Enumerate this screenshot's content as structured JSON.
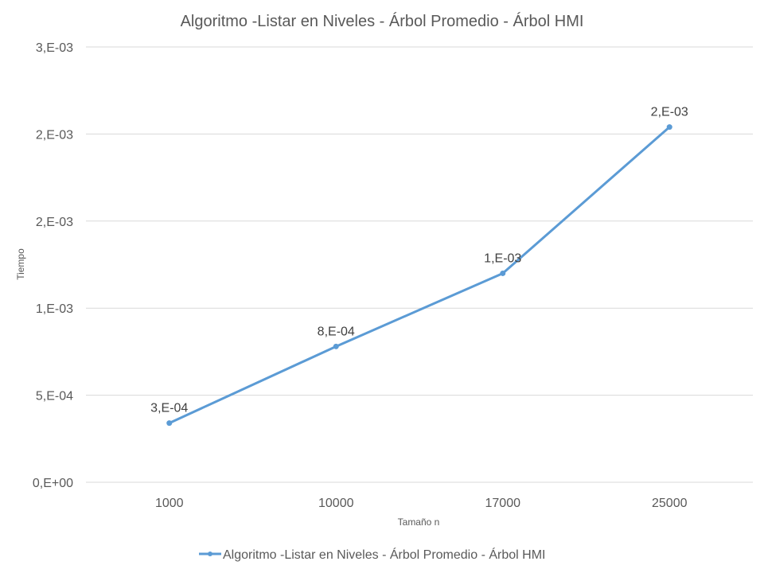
{
  "chart_data": {
    "type": "line",
    "title": "Algoritmo -Listar en Niveles - Árbol Promedio - Árbol HMI",
    "xlabel": "Tamaño n",
    "ylabel": "Tiempo",
    "categories": [
      "1000",
      "10000",
      "17000",
      "25000"
    ],
    "series": [
      {
        "name": "Algoritmo -Listar en Niveles - Árbol Promedio - Árbol HMI",
        "values": [
          0.00034,
          0.00078,
          0.0012,
          0.00204
        ],
        "data_labels": [
          "3,E-04",
          "8,E-04",
          "1,E-03",
          "2,E-03"
        ],
        "color": "#5B9BD5"
      }
    ],
    "ylim": [
      0,
      0.0025
    ],
    "yticks": [
      0,
      0.0005,
      0.001,
      0.0015,
      0.002,
      0.0025
    ],
    "ytick_labels": [
      "0,E+00",
      "5,E-04",
      "1,E-03",
      "2,E-03",
      "2,E-03",
      "3,E-03"
    ],
    "grid": true,
    "legend_position": "bottom"
  },
  "colors": {
    "series": "#5B9BD5",
    "grid": "#D9D9D9",
    "text": "#595959",
    "label_text": "#404040"
  }
}
